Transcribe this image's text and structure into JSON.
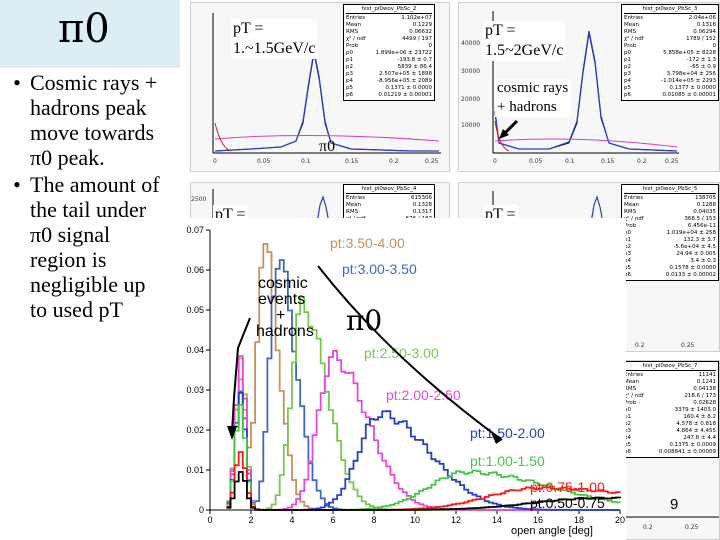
{
  "slide": {
    "title": "π0",
    "bullets": [
      {
        "lines": [
          "Cosmic rays +",
          "hadrons peak",
          "move towards",
          "π0 peak."
        ]
      },
      {
        "lines": [
          "The amount of",
          "the tail under",
          "π0 signal",
          "region is",
          "negligible up",
          "to used pT"
        ]
      }
    ],
    "page_number": "9"
  },
  "panels": [
    {
      "stat_title": "hist_pi0wov_PbSc_2",
      "stats": [
        [
          "Entries",
          "1.102e+07"
        ],
        [
          "Mean",
          "0.1229"
        ],
        [
          "RMS",
          "0.06632"
        ],
        [
          "χ² / ndf",
          "4499 / 197"
        ],
        [
          "Prob",
          "0"
        ],
        [
          "p0",
          "1.899e+06 ± 23722"
        ],
        [
          "p1",
          "-193.8 ± 0.7"
        ],
        [
          "p2",
          "5839 ± 86.4"
        ],
        [
          "p3",
          "2.507e+05 ± 1898"
        ],
        [
          "p4",
          "-8.956e+05 ± 2089"
        ],
        [
          "p5",
          "0.1371 ± 0.0000"
        ],
        [
          "p6",
          "0.01219 ± 0.00001"
        ]
      ],
      "label_lines": [
        "pT =",
        "1.~1.5GeV/c"
      ],
      "peak_label": "π0",
      "x_ticks": [
        "0",
        "0.05",
        "0.1",
        "0.15",
        "0.2",
        "0.25"
      ]
    },
    {
      "stat_title": "hist_pi0wov_PbSc_3",
      "stats": [
        [
          "Entries",
          "2.04e+06"
        ],
        [
          "Mean",
          "0.1318"
        ],
        [
          "RMS",
          "0.06294"
        ],
        [
          "χ² / ndf",
          "1789 / 152"
        ],
        [
          "Prob",
          "0"
        ],
        [
          "p0",
          "5.858e+05 ± 8228"
        ],
        [
          "p1",
          "-172 ± 1.3"
        ],
        [
          "p2",
          "-65 ± 0.9"
        ],
        [
          "p3",
          "3.798e+04 ± 256"
        ],
        [
          "p4",
          "-1.014e+05 ± 2293"
        ],
        [
          "p5",
          "0.1377 ± 0.0000"
        ],
        [
          "p6",
          "0.01085 ± 0.00001"
        ]
      ],
      "label_lines": [
        "pT =",
        "1.5~2GeV/c"
      ],
      "annotation_lines": [
        "cosmic rays",
        "+ hadrons"
      ],
      "y_ticks": [
        "40000",
        "30000",
        "20000",
        "10000"
      ],
      "x_ticks": [
        "0",
        "0.05",
        "0.1",
        "0.15",
        "0.2",
        "0.25"
      ]
    },
    {
      "stat_title": "hist_pi0wov_PbSc_4",
      "stats": [
        [
          "Entries",
          "615306"
        ],
        [
          "Mean",
          "0.1328"
        ],
        [
          "RMS",
          "0.1317"
        ],
        [
          "χ² / ndf",
          "676 / 187"
        ],
        [
          "Prob",
          "0"
        ]
      ],
      "label_lines": [
        "pT ="
      ],
      "y_ticks": [
        "2500"
      ]
    },
    {
      "stat_title": "hist_pi0wov_PbSc_5",
      "stats": [
        [
          "Entries",
          "138705"
        ],
        [
          "Mean",
          "0.1288"
        ],
        [
          "RMS",
          "0.04035"
        ],
        [
          "χ² / ndf",
          "368.5 / 153"
        ],
        [
          "Prob",
          "6.456e-11"
        ],
        [
          "p0",
          "1.019e+04 ± 258"
        ],
        [
          "p1",
          "132.3 ± 3.7"
        ],
        [
          "p2",
          "-5.6e+04 ± 4.5"
        ],
        [
          "p3",
          "24.94 ± 0.005"
        ],
        [
          "p4",
          "3.4 ± 0.3"
        ],
        [
          "p5",
          "0.1578 ± 0.0000"
        ],
        [
          "p6",
          "0.0133 ± 0.00002"
        ]
      ],
      "label_lines": [
        "pT ="
      ],
      "x_ticks": [
        "0.2",
        "0.25"
      ]
    },
    {
      "stat_title": "hist_pi0wov_PbSc_7",
      "stats": [
        [
          "Entries",
          "11141"
        ],
        [
          "Mean",
          "0.1241"
        ],
        [
          "RMS",
          "0.04138"
        ],
        [
          "χ² / ndf",
          "218.6 / 173"
        ],
        [
          "Prob",
          "0.02628"
        ],
        [
          "p0",
          "3379 ± 1403.0"
        ],
        [
          "p1",
          "160.4 ± 8.2"
        ],
        [
          "p2",
          "4.578 ± 0.818"
        ],
        [
          "p3",
          "4.864 ± 4.455"
        ],
        [
          "p4",
          "247.8 ± 4.4"
        ],
        [
          "p5",
          "0.1375 ± 0.0009"
        ],
        [
          "p6",
          "0.008841 ± 0.00009"
        ]
      ],
      "x_ticks": [
        "0.2",
        "0.25"
      ]
    }
  ],
  "chart_data": {
    "type": "line",
    "title": "",
    "xlabel": "open angle [deg]",
    "ylabel": "",
    "xlim": [
      0,
      20
    ],
    "ylim": [
      0,
      0.07
    ],
    "x_ticks": [
      0,
      2,
      4,
      6,
      8,
      10,
      12,
      14,
      16,
      18,
      20
    ],
    "y_ticks": [
      0,
      0.01,
      0.02,
      0.03,
      0.04,
      0.05,
      0.06,
      0.07
    ],
    "series": [
      {
        "name": "pt:3.50-4.00",
        "color": "#c8925a",
        "peak_x": 2.6,
        "peak_y": 0.067,
        "width": 0.45,
        "spike_y": 0.034
      },
      {
        "name": "pt:3.00-3.50",
        "color": "#3f66c8",
        "peak_x": 3.3,
        "peak_y": 0.063,
        "width": 0.55,
        "spike_y": 0.031
      },
      {
        "name": "pt:2.50-3.00",
        "color": "#78c850",
        "peak_x": 4.5,
        "peak_y": 0.051,
        "width": 0.75,
        "spike_y": 0.038
      },
      {
        "name": "pt:2.00-2.50",
        "color": "#e64bd2",
        "peak_x": 6.0,
        "peak_y": 0.038,
        "width": 1.05,
        "spike_y": 0.037
      },
      {
        "name": "pt:1.50-2.00",
        "color": "#2840c8",
        "peak_x": 8.3,
        "peak_y": 0.024,
        "width": 1.5,
        "spike_y": 0.028
      },
      {
        "name": "pt:1.00-1.50",
        "color": "#46c846",
        "peak_x": 12.5,
        "peak_y": 0.0095,
        "width": 2.6,
        "spike_y": 0.026
      },
      {
        "name": "pt:0.75-1.00",
        "color": "#ff1a1a",
        "peak_x": 16.0,
        "peak_y": 0.0055,
        "width": 3.5,
        "spike_y": 0.015
      },
      {
        "name": "pt:0.50-0.75",
        "color": "#000000",
        "peak_x": 19.0,
        "peak_y": 0.003,
        "width": 4.5,
        "spike_y": 0.01
      }
    ],
    "annotations": {
      "cosmic": [
        "cosmic",
        "events",
        "+",
        "hadrons"
      ],
      "pi0": "π0"
    }
  }
}
